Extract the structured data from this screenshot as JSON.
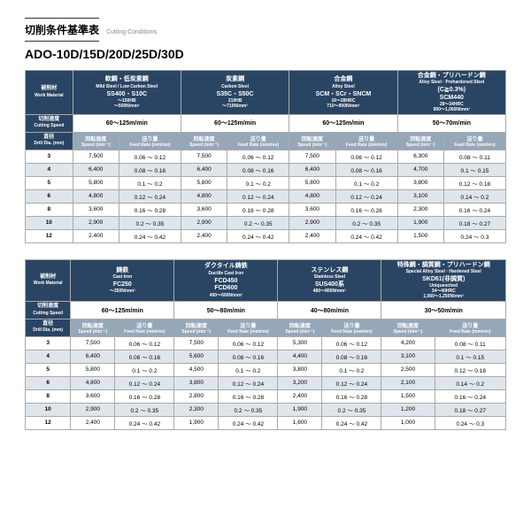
{
  "title_jp": "切削条件基準表",
  "title_en": "Cutting Conditions",
  "model": "ADO-10D/15D/20D/25D/30D",
  "hdr": {
    "material": "被削材",
    "material_en": "Work Material",
    "speed": "切削速度",
    "speed_en": "Cutting Speed",
    "dia": "直径",
    "dia_en": "Drill Dia. (mm)",
    "rpm": "回転速度",
    "rpm_en": "Speed (min⁻¹)",
    "feed": "送り量",
    "feed_en": "Feed Rate (mm/rev)"
  },
  "t1": {
    "mats": [
      {
        "grp": "軟鋼・低炭素鋼",
        "grp_en": "Mild Steel / Low Carbon Steel",
        "spec": "SS400・S10C",
        "note": "～150HB<br>～500N/mm²",
        "cs": "60～125m/min"
      },
      {
        "grp": "炭素鋼",
        "grp_en": "Carbon Steel",
        "spec": "S35C・S50C",
        "note": "210HB<br>～710N/mm²",
        "cs": "60～125m/min"
      },
      {
        "grp": "合金鋼",
        "grp_en": "Alloy Steel",
        "spec": "SCM・SCr・SNCM",
        "note": "16～28HRC<br>710～900N/mm²",
        "cs": "60～125m/min"
      },
      {
        "grp": "合金鋼・プリハードン鋼",
        "grp_en": "Alloy Steel · Prehardened Steel",
        "spec": "(C≧0.3%)<br>SCM440",
        "note": "28～34HRC<br>900～1,060N/mm²",
        "cs": "50～70m/min"
      }
    ],
    "rows": [
      {
        "d": "3",
        "c": [
          [
            "7,500",
            "0.06 ～ 0.12"
          ],
          [
            "7,500",
            "0.06 ～ 0.12"
          ],
          [
            "7,500",
            "0.06 ～ 0.12"
          ],
          [
            "6,300",
            "0.08 ～ 0.11"
          ]
        ]
      },
      {
        "d": "4",
        "c": [
          [
            "6,400",
            "0.08 ～ 0.16"
          ],
          [
            "6,400",
            "0.08 ～ 0.16"
          ],
          [
            "6,400",
            "0.08 ～ 0.16"
          ],
          [
            "4,700",
            "0.1 ～ 0.15"
          ]
        ]
      },
      {
        "d": "5",
        "c": [
          [
            "5,800",
            "0.1 ～ 0.2"
          ],
          [
            "5,800",
            "0.1 ～ 0.2"
          ],
          [
            "5,800",
            "0.1 ～ 0.2"
          ],
          [
            "3,800",
            "0.12 ～ 0.18"
          ]
        ]
      },
      {
        "d": "6",
        "c": [
          [
            "4,800",
            "0.12 ～ 0.24"
          ],
          [
            "4,800",
            "0.12 ～ 0.24"
          ],
          [
            "4,800",
            "0.12 ～ 0.24"
          ],
          [
            "3,100",
            "0.14 ～ 0.2"
          ]
        ]
      },
      {
        "d": "8",
        "c": [
          [
            "3,600",
            "0.16 ～ 0.28"
          ],
          [
            "3,600",
            "0.16 ～ 0.28"
          ],
          [
            "3,600",
            "0.16 ～ 0.28"
          ],
          [
            "2,300",
            "0.16 ～ 0.24"
          ]
        ]
      },
      {
        "d": "10",
        "c": [
          [
            "2,900",
            "0.2 ～ 0.35"
          ],
          [
            "2,900",
            "0.2 ～ 0.35"
          ],
          [
            "2,900",
            "0.2 ～ 0.35"
          ],
          [
            "1,900",
            "0.18 ～ 0.27"
          ]
        ]
      },
      {
        "d": "12",
        "c": [
          [
            "2,400",
            "0.24 ～ 0.42"
          ],
          [
            "2,400",
            "0.24 ～ 0.42"
          ],
          [
            "2,400",
            "0.24 ～ 0.42"
          ],
          [
            "1,500",
            "0.24 ～ 0.3"
          ]
        ]
      }
    ]
  },
  "t2": {
    "mats": [
      {
        "grp": "鋳鉄",
        "grp_en": "Cast Iron",
        "spec": "FC250",
        "note": "～350N/mm²",
        "cs": "60～125m/min"
      },
      {
        "grp": "ダクタイル鋳鉄",
        "grp_en": "Ductile Cast Iron",
        "spec": "FCD450<br>FCD600",
        "note": "400～600N/mm²",
        "cs": "50～80m/min"
      },
      {
        "grp": "ステンレス鋼",
        "grp_en": "Stainless Steel",
        "spec": "SUS400系",
        "note": "480～800N/mm²",
        "cs": "40～80m/min"
      },
      {
        "grp": "特殊鋼・調質鋼・プリハードン鋼",
        "grp_en": "Special Alloy Steel · Hardened Steel",
        "spec": "SKD61(非調質)",
        "note": "Uniquenched<br>34～40HRC<br>1,060～1,250N/mm²",
        "cs": "30～50m/min"
      }
    ],
    "rows": [
      {
        "d": "3",
        "c": [
          [
            "7,500",
            "0.06 ～ 0.12"
          ],
          [
            "7,500",
            "0.06 ～ 0.12"
          ],
          [
            "5,300",
            "0.06 ～ 0.12"
          ],
          [
            "4,200",
            "0.08 ～ 0.11"
          ]
        ]
      },
      {
        "d": "4",
        "c": [
          [
            "6,400",
            "0.08 ～ 0.16"
          ],
          [
            "5,600",
            "0.08 ～ 0.16"
          ],
          [
            "4,400",
            "0.08 ～ 0.16"
          ],
          [
            "3,100",
            "0.1 ～ 0.15"
          ]
        ]
      },
      {
        "d": "5",
        "c": [
          [
            "5,800",
            "0.1 ～ 0.2"
          ],
          [
            "4,500",
            "0.1 ～ 0.2"
          ],
          [
            "3,800",
            "0.1 ～ 0.2"
          ],
          [
            "2,500",
            "0.12 ～ 0.18"
          ]
        ]
      },
      {
        "d": "6",
        "c": [
          [
            "4,800",
            "0.12 ～ 0.24"
          ],
          [
            "3,800",
            "0.12 ～ 0.24"
          ],
          [
            "3,200",
            "0.12 ～ 0.24"
          ],
          [
            "2,100",
            "0.14 ～ 0.2"
          ]
        ]
      },
      {
        "d": "8",
        "c": [
          [
            "3,600",
            "0.16 ～ 0.28"
          ],
          [
            "2,800",
            "0.16 ～ 0.28"
          ],
          [
            "2,400",
            "0.16 ～ 0.28"
          ],
          [
            "1,500",
            "0.16 ～ 0.24"
          ]
        ]
      },
      {
        "d": "10",
        "c": [
          [
            "2,900",
            "0.2 ～ 0.35"
          ],
          [
            "2,300",
            "0.2 ～ 0.35"
          ],
          [
            "1,900",
            "0.2 ～ 0.35"
          ],
          [
            "1,200",
            "0.18 ～ 0.27"
          ]
        ]
      },
      {
        "d": "12",
        "c": [
          [
            "2,400",
            "0.24 ～ 0.42"
          ],
          [
            "1,900",
            "0.24 ～ 0.42"
          ],
          [
            "1,600",
            "0.24 ～ 0.42"
          ],
          [
            "1,000",
            "0.24 ～ 0.3"
          ]
        ]
      }
    ]
  }
}
